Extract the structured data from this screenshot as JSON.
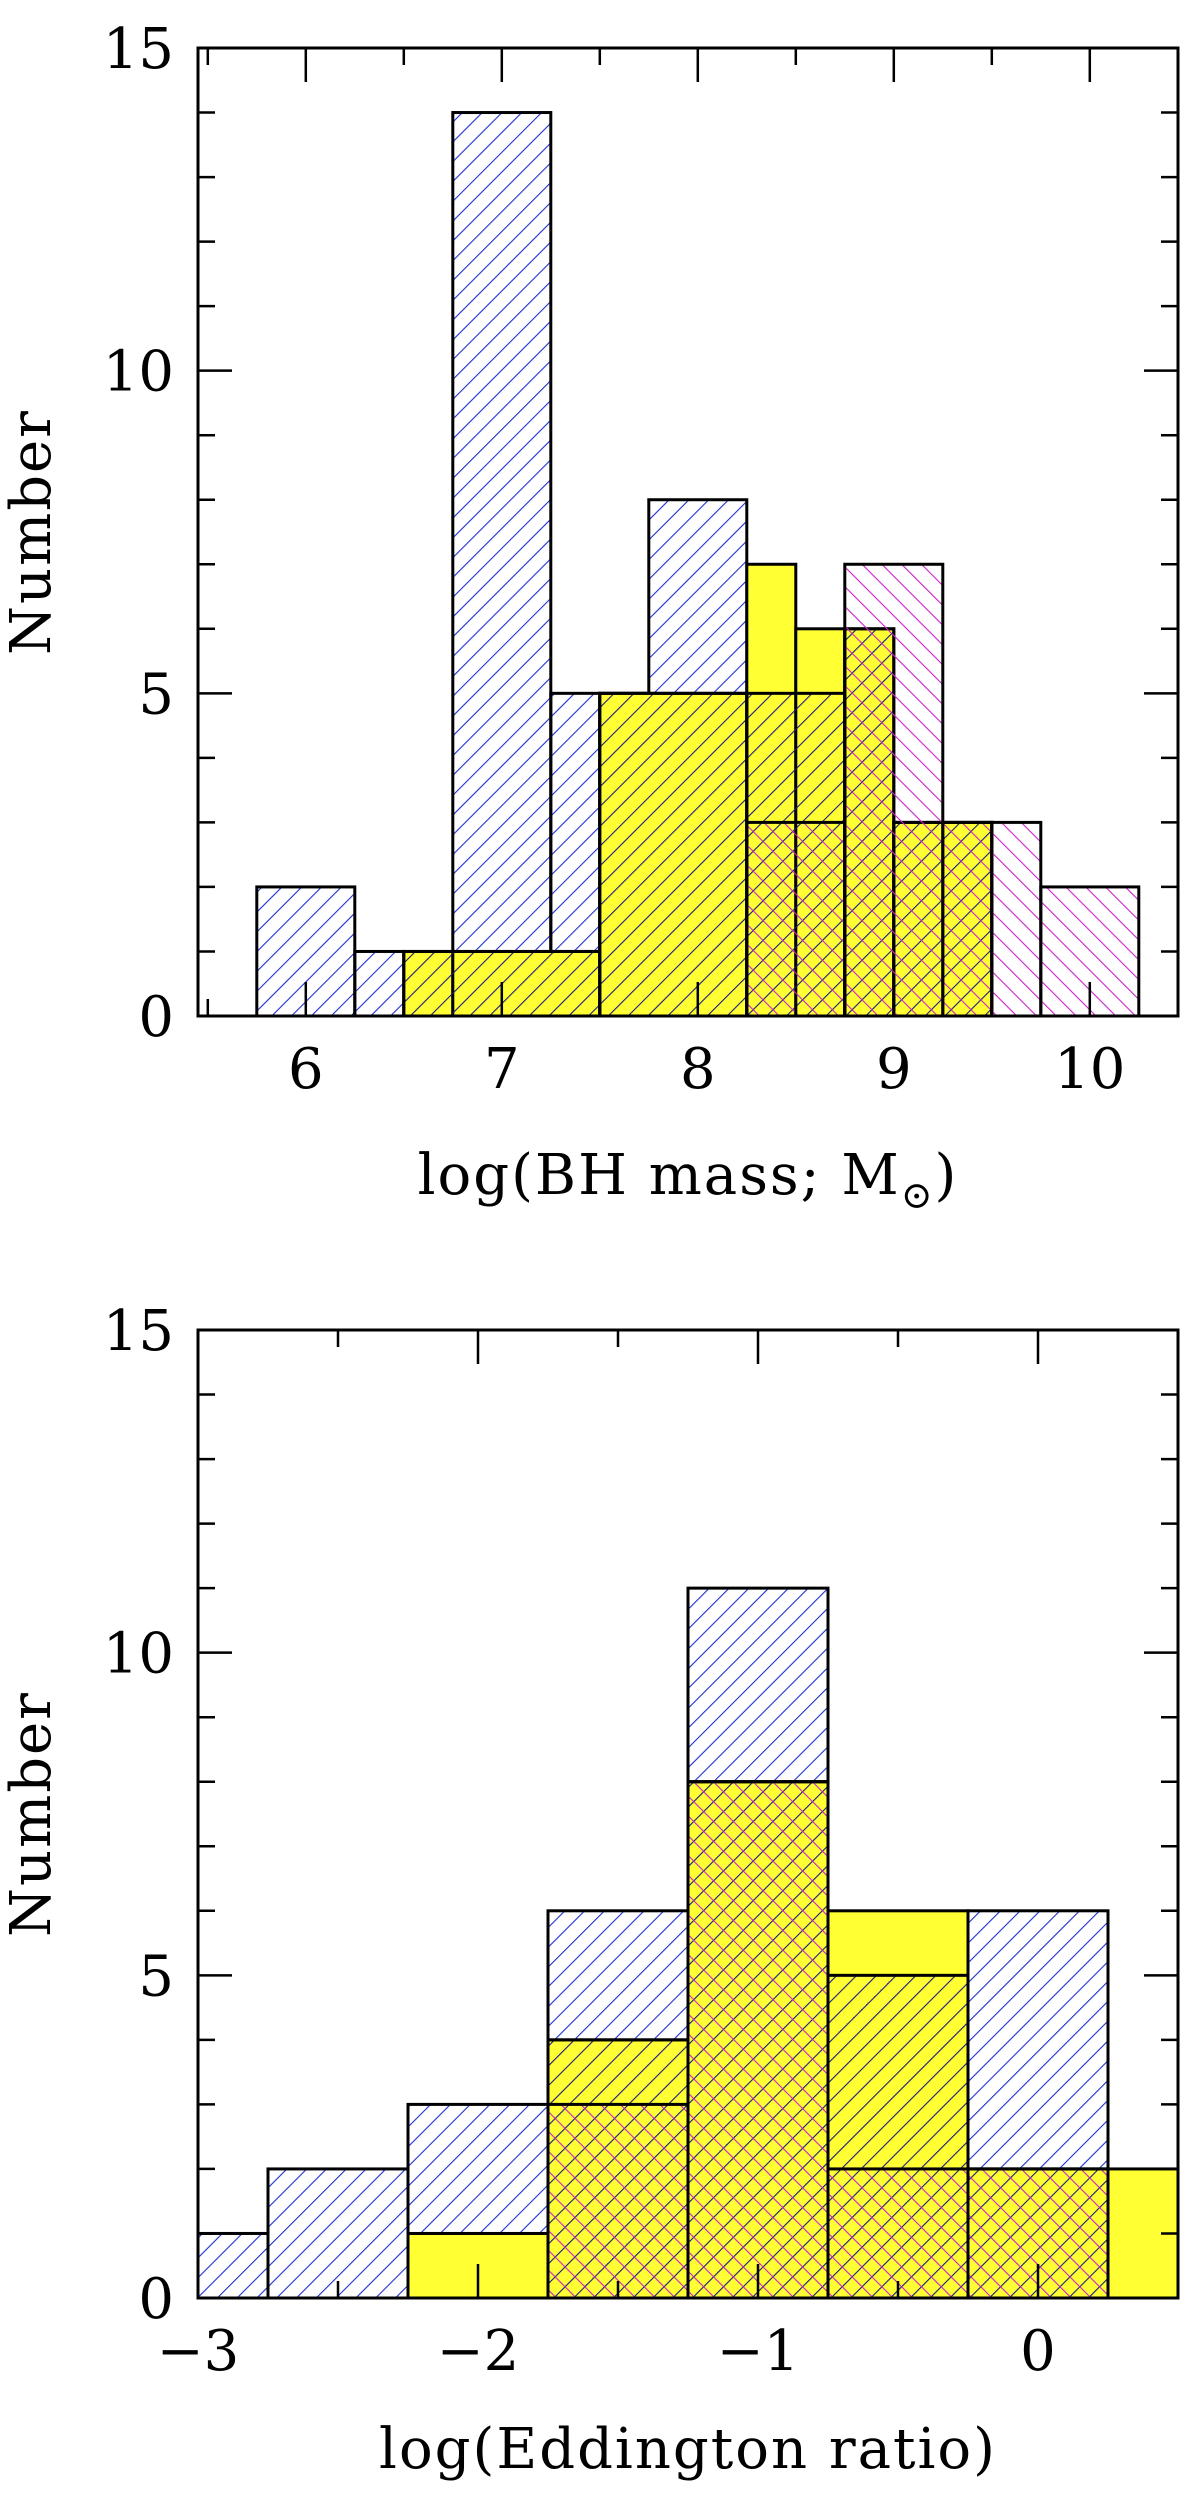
{
  "chart_data": [
    {
      "type": "histogram",
      "xlabel": "log(BH mass; M",
      "xlabel_subscript": "⊙",
      "xlabel_close": ")",
      "ylabel": "Number",
      "xlim": [
        5.45,
        10.45
      ],
      "ylim": [
        0,
        15
      ],
      "x_ticks": [
        6,
        7,
        8,
        9,
        10
      ],
      "x_ticklabels": [
        "6",
        "7",
        "8",
        "9",
        "10"
      ],
      "y_ticks": [
        0,
        5,
        10,
        15
      ],
      "y_ticklabels": [
        "0",
        "5",
        "10",
        "15"
      ],
      "bin_edges": [
        5.75,
        6.25,
        6.5,
        6.75,
        7.25,
        7.5,
        7.75,
        8.25,
        8.5,
        8.75,
        9.0,
        9.25,
        9.5,
        9.75,
        10.25
      ],
      "series": [
        {
          "style": "blue-hatch",
          "color": "#1f2fd0",
          "bins": [
            [
              5.75,
              6.25,
              2
            ],
            [
              6.25,
              6.5,
              1
            ],
            [
              6.75,
              7.25,
              14
            ],
            [
              7.25,
              7.5,
              5
            ],
            [
              7.5,
              7.75,
              5
            ],
            [
              7.75,
              8.25,
              8
            ],
            [
              8.25,
              8.75,
              3
            ],
            [
              8.75,
              9.25,
              1
            ]
          ]
        },
        {
          "style": "yellow-fill",
          "color": "#ffff33",
          "bins": [
            [
              6.5,
              6.75,
              1
            ],
            [
              6.75,
              7.5,
              1
            ],
            [
              7.5,
              8.25,
              5
            ],
            [
              8.25,
              8.5,
              7
            ],
            [
              8.5,
              8.75,
              6
            ],
            [
              8.75,
              9.0,
              6
            ],
            [
              9.0,
              9.5,
              3
            ]
          ]
        },
        {
          "style": "yellow-blue-hatch",
          "color": "#1f2fd0",
          "bins": [
            [
              6.5,
              7.5,
              1
            ],
            [
              7.5,
              8.25,
              5
            ],
            [
              8.25,
              8.75,
              5
            ],
            [
              8.75,
              9.0,
              6
            ],
            [
              9.0,
              9.5,
              3
            ]
          ]
        },
        {
          "style": "magenta-hatch",
          "color": "#cc22cc",
          "bins": [
            [
              8.25,
              8.75,
              3
            ],
            [
              8.75,
              9.25,
              7
            ],
            [
              9.25,
              9.5,
              3
            ],
            [
              9.5,
              9.75,
              3
            ],
            [
              9.75,
              10.25,
              2
            ]
          ]
        }
      ]
    },
    {
      "type": "histogram",
      "xlabel": "log(Eddington ratio)",
      "ylabel": "Number",
      "xlim": [
        -3.0,
        0.5
      ],
      "ylim": [
        0,
        15
      ],
      "x_ticks": [
        -3,
        -2,
        -1,
        0
      ],
      "x_ticklabels": [
        "−3",
        "−2",
        "−1",
        "0"
      ],
      "y_ticks": [
        0,
        5,
        10,
        15
      ],
      "y_ticklabels": [
        "0",
        "5",
        "10",
        "15"
      ],
      "bin_edges": [
        -3.0,
        -2.75,
        -2.25,
        -1.75,
        -1.25,
        -0.75,
        -0.25,
        0.25,
        0.5
      ],
      "series": [
        {
          "style": "blue-hatch",
          "color": "#1f2fd0",
          "bins": [
            [
              -3.0,
              -2.75,
              1
            ],
            [
              -2.75,
              -2.25,
              2
            ],
            [
              -2.25,
              -1.75,
              3
            ],
            [
              -1.75,
              -1.25,
              6
            ],
            [
              -1.25,
              -0.75,
              11
            ],
            [
              -0.75,
              -0.25,
              2
            ],
            [
              -0.25,
              0.25,
              6
            ]
          ]
        },
        {
          "style": "yellow-fill",
          "color": "#ffff33",
          "bins": [
            [
              -2.25,
              -1.75,
              1
            ],
            [
              -1.75,
              -1.25,
              4
            ],
            [
              -1.25,
              -0.75,
              8
            ],
            [
              -0.75,
              -0.25,
              6
            ],
            [
              -0.25,
              0.25,
              2
            ],
            [
              0.25,
              0.5,
              2
            ]
          ]
        },
        {
          "style": "yellow-blue-hatch",
          "color": "#1f2fd0",
          "bins": [
            [
              -1.75,
              -1.25,
              4
            ],
            [
              -1.25,
              -0.75,
              8
            ],
            [
              -0.75,
              -0.25,
              5
            ],
            [
              -0.25,
              0.25,
              2
            ]
          ]
        },
        {
          "style": "magenta-hatch",
          "color": "#cc22cc",
          "bins": [
            [
              -1.75,
              -1.25,
              3
            ],
            [
              -1.25,
              -0.75,
              8
            ],
            [
              -0.75,
              -0.25,
              2
            ],
            [
              -0.25,
              0.25,
              2
            ]
          ]
        }
      ]
    }
  ]
}
